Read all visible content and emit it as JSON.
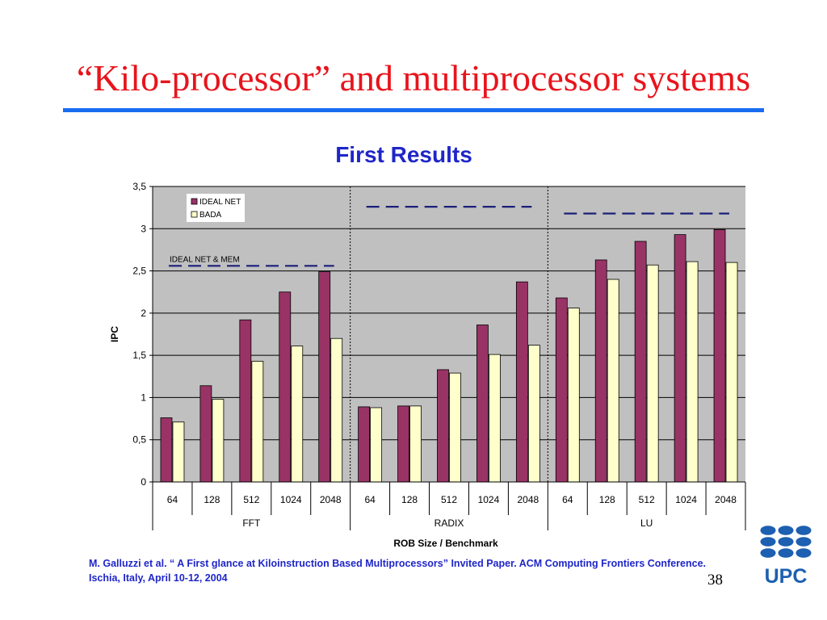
{
  "slide": {
    "title": "“Kilo-processor” and multiprocessor systems",
    "citation": "M. Galluzzi et al. “ A First glance at Kiloinstruction Based Multiprocessors” Invited Paper. ACM Computing Frontiers Conference. Ischia, Italy, April 10-12, 2004",
    "page_number": "38",
    "logo_text": "UPC",
    "colors": {
      "title": "#e8141c",
      "rule": "#1a6cf0",
      "accent_text": "#1f26c8",
      "logo": "#1d5fb0"
    }
  },
  "chart_data": {
    "type": "bar",
    "title": "First Results",
    "xlabel": "ROB Size / Benchmark",
    "ylabel": "IPC",
    "ylim": [
      0,
      3.5
    ],
    "yticks": [
      "0",
      "0,5",
      "1",
      "1,5",
      "2",
      "2,5",
      "3",
      "3,5"
    ],
    "grid": true,
    "legend_position": "top-left",
    "groups": [
      {
        "name": "FFT",
        "categories": [
          "64",
          "128",
          "512",
          "1024",
          "2048"
        ]
      },
      {
        "name": "RADIX",
        "categories": [
          "64",
          "128",
          "512",
          "1024",
          "2048"
        ]
      },
      {
        "name": "LU",
        "categories": [
          "64",
          "128",
          "512",
          "1024",
          "2048"
        ]
      }
    ],
    "series": [
      {
        "name": "IDEAL NET",
        "color": "#993366",
        "values": [
          0.76,
          1.14,
          1.92,
          2.25,
          2.49,
          0.89,
          0.9,
          1.33,
          1.86,
          2.37,
          2.18,
          2.63,
          2.85,
          2.93,
          2.99
        ]
      },
      {
        "name": "BADA",
        "color": "#ffffcc",
        "values": [
          0.71,
          0.98,
          1.43,
          1.61,
          1.7,
          0.88,
          0.9,
          1.29,
          1.51,
          1.62,
          2.06,
          2.4,
          2.57,
          2.61,
          2.6
        ]
      }
    ],
    "reference_lines": [
      {
        "group": "FFT",
        "value": 2.56,
        "label": "IDEAL NET & MEM"
      },
      {
        "group": "RADIX",
        "value": 3.26,
        "label": ""
      },
      {
        "group": "LU",
        "value": 3.18,
        "label": ""
      }
    ]
  }
}
